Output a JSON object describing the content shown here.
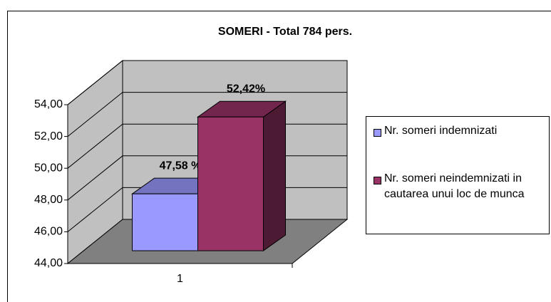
{
  "chart_data": {
    "type": "bar3d",
    "title": "SOMERI - Total 784 pers.",
    "categories": [
      "1"
    ],
    "series": [
      {
        "name": "Nr. someri indemnizati",
        "color": "#9999ff",
        "values": [
          47.58
        ],
        "value_labels": [
          "47,58 %"
        ]
      },
      {
        "name": "Nr. someri neindemnizati in cautarea unui loc de munca",
        "color": "#993366",
        "values": [
          52.42
        ],
        "value_labels": [
          "52,42%"
        ]
      }
    ],
    "ylim": [
      44,
      54
    ],
    "yticks": [
      {
        "value": 44,
        "label": "44,00"
      },
      {
        "value": 46,
        "label": "46,00"
      },
      {
        "value": 48,
        "label": "48,00"
      },
      {
        "value": 50,
        "label": "50,00"
      },
      {
        "value": 52,
        "label": "52,00"
      },
      {
        "value": 54,
        "label": "54,00"
      }
    ],
    "grid": true,
    "legend": "right"
  }
}
